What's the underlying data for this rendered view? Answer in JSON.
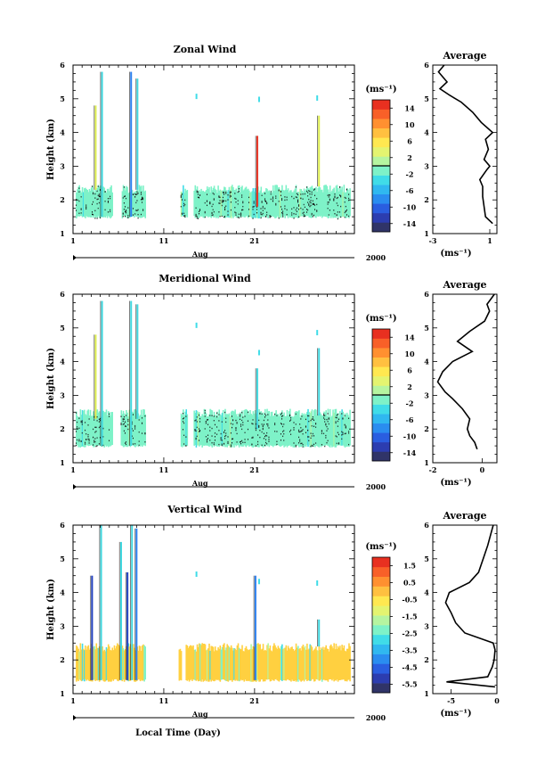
{
  "figure": {
    "xlabel": "Local Time (Day)",
    "x_ticks": [
      "1",
      "11",
      "21"
    ],
    "month_label": "Aug",
    "year_label": "2000",
    "y_ticks": [
      "1",
      "2",
      "3",
      "4",
      "5",
      "6"
    ],
    "y_label": "Height (km)",
    "colorbar_unit": "(ms⁻¹)",
    "average_unit": "(ms⁻¹)",
    "average_title": "Average"
  },
  "chart_data": [
    {
      "type": "heatmap",
      "title": "Zonal Wind",
      "ylabel": "Height (km)",
      "xlabel": "Aug",
      "xlim": [
        1,
        32
      ],
      "ylim": [
        1,
        6
      ],
      "colorbar": {
        "ticks": [
          "14",
          "10",
          "6",
          "2",
          "-2",
          "-6",
          "-10",
          "-14"
        ],
        "range": [
          -16,
          16
        ],
        "zero_line": 0
      },
      "dense_layer_km": [
        1.45,
        2.45
      ],
      "dense_color": "#7ef2c8",
      "gaps_days": [
        [
          5.3,
          6.3
        ],
        [
          8.9,
          12.8
        ],
        [
          13.6,
          14.2
        ]
      ],
      "tall_columns": [
        {
          "day": 3.4,
          "bottom": 2.3,
          "top": 4.8,
          "color": "#e0f050"
        },
        {
          "day": 4.1,
          "bottom": 1.5,
          "top": 5.8,
          "color": "#40d8e0"
        },
        {
          "day": 7.3,
          "bottom": 1.5,
          "top": 5.8,
          "color": "#2a7ff0"
        },
        {
          "day": 8.0,
          "bottom": 2.3,
          "top": 5.6,
          "color": "#40d8e0"
        },
        {
          "day": 21.2,
          "bottom": 1.8,
          "top": 3.9,
          "color": "#e83020"
        },
        {
          "day": 28.0,
          "bottom": 2.4,
          "top": 4.5,
          "color": "#e0f050"
        }
      ],
      "average_profile": {
        "xlim": [
          -3,
          1.5
        ],
        "xticks": [
          "-3",
          "1"
        ],
        "height": [
          1.3,
          1.5,
          1.8,
          2.1,
          2.4,
          2.6,
          2.9,
          3.0,
          3.2,
          3.5,
          3.8,
          4.0,
          4.3,
          4.6,
          4.9,
          5.1,
          5.3,
          5.5,
          5.8,
          6.0
        ],
        "value": [
          1.2,
          0.7,
          0.6,
          0.5,
          0.5,
          0.3,
          0.8,
          1.0,
          0.6,
          0.9,
          0.7,
          1.2,
          0.4,
          -0.2,
          -1.0,
          -1.8,
          -2.5,
          -2.0,
          -2.6,
          -2.2
        ]
      }
    },
    {
      "type": "heatmap",
      "title": "Meridional Wind",
      "ylabel": "Height (km)",
      "xlabel": "Aug",
      "xlim": [
        1,
        32
      ],
      "ylim": [
        1,
        6
      ],
      "colorbar": {
        "ticks": [
          "14",
          "10",
          "6",
          "2",
          "-2",
          "-6",
          "-10",
          "-14"
        ],
        "range": [
          -16,
          16
        ],
        "zero_line": 0
      },
      "dense_layer_km": [
        1.45,
        2.6
      ],
      "dense_color": "#7ef2c8",
      "gaps_days": [
        [
          5.3,
          6.2
        ],
        [
          8.9,
          12.8
        ],
        [
          13.6,
          14.2
        ]
      ],
      "tall_columns": [
        {
          "day": 3.4,
          "bottom": 2.3,
          "top": 4.8,
          "color": "#e0f050"
        },
        {
          "day": 4.1,
          "bottom": 1.5,
          "top": 5.8,
          "color": "#40d8e0"
        },
        {
          "day": 7.3,
          "bottom": 1.5,
          "top": 5.8,
          "color": "#40d8e0"
        },
        {
          "day": 8.0,
          "bottom": 2.3,
          "top": 5.7,
          "color": "#40d8e0"
        },
        {
          "day": 21.2,
          "bottom": 2.0,
          "top": 3.8,
          "color": "#40d8e0"
        },
        {
          "day": 28.0,
          "bottom": 2.4,
          "top": 4.4,
          "color": "#40d8e0"
        }
      ],
      "average_profile": {
        "xlim": [
          -2,
          0.6
        ],
        "xticks": [
          "-2",
          "0"
        ],
        "height": [
          1.4,
          1.6,
          1.8,
          2.0,
          2.3,
          2.6,
          2.9,
          3.1,
          3.4,
          3.7,
          4.0,
          4.3,
          4.6,
          4.9,
          5.2,
          5.5,
          5.7,
          6.0
        ],
        "value": [
          -0.2,
          -0.3,
          -0.5,
          -0.6,
          -0.5,
          -0.8,
          -1.2,
          -1.5,
          -1.8,
          -1.6,
          -1.2,
          -0.4,
          -1.0,
          -0.5,
          0.1,
          0.3,
          0.2,
          0.5
        ]
      }
    },
    {
      "type": "heatmap",
      "title": "Vertical Wind",
      "ylabel": "Height (km)",
      "xlabel": "Local Time (Day)",
      "xlim": [
        1,
        32
      ],
      "ylim": [
        1,
        6
      ],
      "colorbar": {
        "ticks": [
          "1.5",
          "0.5",
          "-0.5",
          "-1.5",
          "-2.5",
          "-3.5",
          "-4.5",
          "-5.5"
        ],
        "range": [
          -6,
          2
        ],
        "zero_line": null
      },
      "dense_layer_km": [
        1.35,
        2.5
      ],
      "dense_color": "#ffd040",
      "gaps_days": [
        [
          8.9,
          12.6
        ],
        [
          12.9,
          13.3
        ]
      ],
      "tall_columns": [
        {
          "day": 3.0,
          "bottom": 1.4,
          "top": 4.5,
          "color": "#2040c0"
        },
        {
          "day": 4.0,
          "bottom": 1.4,
          "top": 6.0,
          "color": "#40d8e0"
        },
        {
          "day": 6.2,
          "bottom": 1.4,
          "top": 5.5,
          "color": "#40d8e0"
        },
        {
          "day": 6.9,
          "bottom": 1.4,
          "top": 4.6,
          "color": "#2040c0"
        },
        {
          "day": 7.4,
          "bottom": 1.4,
          "top": 6.0,
          "color": "#40d8e0"
        },
        {
          "day": 7.9,
          "bottom": 1.4,
          "top": 5.9,
          "color": "#2a7ff0"
        },
        {
          "day": 21.0,
          "bottom": 1.4,
          "top": 4.5,
          "color": "#2a7ff0"
        },
        {
          "day": 28.0,
          "bottom": 2.4,
          "top": 3.2,
          "color": "#40d8e0"
        }
      ],
      "average_profile": {
        "xlim": [
          -7,
          0
        ],
        "xticks": [
          "-5",
          "0"
        ],
        "height": [
          1.2,
          1.35,
          1.5,
          1.8,
          2.0,
          2.3,
          2.5,
          2.8,
          3.1,
          3.4,
          3.7,
          4.0,
          4.3,
          4.6,
          5.0,
          5.4,
          5.8,
          6.0
        ],
        "value": [
          -0.2,
          -5.5,
          -1.0,
          -0.5,
          -0.3,
          -0.2,
          -0.4,
          -3.5,
          -4.5,
          -5.0,
          -5.6,
          -5.2,
          -3.0,
          -2.0,
          -1.5,
          -1.0,
          -0.6,
          -0.4
        ]
      }
    }
  ]
}
